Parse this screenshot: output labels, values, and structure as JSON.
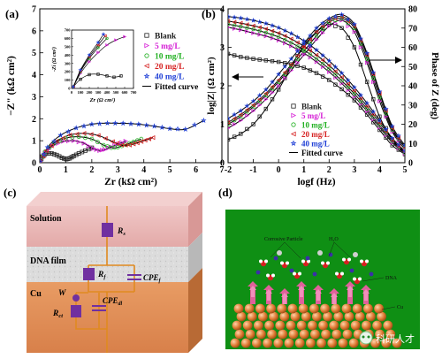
{
  "panel_a": {
    "label": "(a)",
    "ylabel": "−Z\" (kΩ cm²)",
    "xlabel": "Zr (kΩ cm²)",
    "inset_ylabel": "-Zi (Ω cm²)",
    "inset_xlabel": "Zr (Ω cm²)"
  },
  "panel_b": {
    "label": "(b)",
    "ylabel_left": "log|Z| (Ω cm²)",
    "ylabel_right": "Phase of Z (deg)",
    "xlabel": "logf (Hz)"
  },
  "panel_c": {
    "label": "(c)",
    "layers": [
      "Solution",
      "DNA film",
      "Cu"
    ],
    "components": [
      "Rs",
      "Rf",
      "CPEf",
      "W",
      "CPEdl",
      "Rct"
    ]
  },
  "panel_d": {
    "label": "(d)",
    "annotations": [
      "Corrosive Particle",
      "H₂O",
      "DNA",
      "Cu"
    ]
  },
  "watermark": "科研人才",
  "legend": [
    "Blank",
    "5 mg/L",
    "10 mg/L",
    "20 mg/L",
    "40 mg/L",
    "Fitted curve"
  ],
  "colors": {
    "Blank": "#222222",
    "5 mg/L": "#d61fd6",
    "10 mg/L": "#22b022",
    "20 mg/L": "#d62222",
    "40 mg/L": "#1f3fd6",
    "fit": "#000000",
    "solution": "#e8b4b4",
    "dna": "#d8d8d8",
    "cu": "#e49158",
    "circuit": "#e08a20",
    "component": "#7030a0",
    "d_bg": "#0f8f14",
    "d_cu": "#d8762f",
    "d_arrow": "#e0609a"
  },
  "chart_data": [
    {
      "panel": "a",
      "type": "scatter",
      "xlabel": "Zr (kΩ cm²)",
      "ylabel": "−Z\" (kΩ cm²)",
      "xlim": [
        0,
        7
      ],
      "ylim": [
        0,
        7
      ],
      "xticks": [
        0,
        1,
        2,
        3,
        4,
        5,
        6,
        7
      ],
      "yticks": [
        0,
        1,
        2,
        3,
        4,
        5,
        6,
        7
      ],
      "series": [
        {
          "name": "Blank",
          "marker": "square",
          "x": [
            0.02,
            0.1,
            0.25,
            0.45,
            0.65,
            0.85,
            1.02,
            1.15,
            1.3,
            1.5,
            1.75,
            2.0
          ],
          "y": [
            0.05,
            0.28,
            0.42,
            0.43,
            0.35,
            0.22,
            0.16,
            0.2,
            0.3,
            0.42,
            0.55,
            0.68
          ]
        },
        {
          "name": "5 mg/L",
          "marker": "triangle-right",
          "x": [
            0.02,
            0.2,
            0.5,
            0.9,
            1.3,
            1.7,
            2.05,
            2.3,
            2.5,
            2.75,
            3.0,
            3.3
          ],
          "y": [
            0.05,
            0.45,
            0.78,
            0.97,
            1.0,
            0.88,
            0.64,
            0.55,
            0.6,
            0.72,
            0.85,
            0.98
          ]
        },
        {
          "name": "10 mg/L",
          "marker": "circle",
          "x": [
            0.02,
            0.2,
            0.55,
            1.0,
            1.5,
            2.0,
            2.45,
            2.75,
            3.0,
            3.3,
            3.6,
            3.9
          ],
          "y": [
            0.05,
            0.5,
            0.88,
            1.12,
            1.18,
            1.08,
            0.8,
            0.68,
            0.7,
            0.82,
            0.95,
            1.08
          ]
        },
        {
          "name": "20 mg/L",
          "marker": "triangle-left",
          "x": [
            0.02,
            0.25,
            0.65,
            1.15,
            1.7,
            2.25,
            2.8,
            3.15,
            3.45,
            3.75,
            4.05,
            4.35
          ],
          "y": [
            0.05,
            0.55,
            0.98,
            1.26,
            1.34,
            1.24,
            0.96,
            0.8,
            0.8,
            0.9,
            1.02,
            1.14
          ]
        },
        {
          "name": "40 mg/L",
          "marker": "star",
          "x": [
            0.02,
            0.3,
            0.8,
            1.4,
            2.0,
            2.6,
            3.2,
            3.8,
            4.4,
            5.0,
            5.6,
            6.3
          ],
          "y": [
            0.05,
            0.7,
            1.25,
            1.58,
            1.75,
            1.8,
            1.79,
            1.75,
            1.66,
            1.55,
            1.52,
            1.92
          ]
        }
      ],
      "inset": {
        "xlim": [
          0,
          700
        ],
        "ylim": [
          0,
          700
        ],
        "xticks": [
          0,
          100,
          200,
          300,
          400,
          500,
          600,
          700
        ],
        "yticks": [
          0,
          100,
          200,
          300,
          400,
          500,
          600,
          700
        ],
        "series": [
          {
            "name": "Blank",
            "x": [
              20,
              100,
              200,
              300,
              400,
              480,
              560
            ],
            "y": [
              20,
              110,
              165,
              170,
              150,
              135,
              150
            ]
          },
          {
            "name": "5 mg/L",
            "x": [
              20,
              100,
              200,
              300,
              400,
              500,
              600
            ],
            "y": [
              20,
              180,
              320,
              430,
              520,
              580,
              620
            ]
          },
          {
            "name": "10 mg/L",
            "x": [
              20,
              100,
              200,
              300,
              400
            ],
            "y": [
              20,
              200,
              360,
              490,
              600
            ]
          },
          {
            "name": "20 mg/L",
            "x": [
              20,
              100,
              200,
              300,
              380
            ],
            "y": [
              20,
              210,
              380,
              520,
              630
            ]
          },
          {
            "name": "40 mg/L",
            "x": [
              20,
              100,
              200,
              300,
              360
            ],
            "y": [
              20,
              220,
              400,
              550,
              650
            ]
          }
        ]
      }
    },
    {
      "panel": "b",
      "type": "line",
      "xlabel": "logf (Hz)",
      "ylabel": "log|Z| (Ω cm²)",
      "ylabel_right": "Phase of Z (deg)",
      "xlim": [
        -2,
        5
      ],
      "ylim": [
        0,
        4
      ],
      "ylim_right": [
        0,
        80
      ],
      "xticks": [
        -2,
        -1,
        0,
        1,
        2,
        3,
        4,
        5
      ],
      "yticks": [
        0,
        1,
        2,
        3,
        4
      ],
      "yticks_right": [
        0,
        10,
        20,
        30,
        40,
        50,
        60,
        70,
        80
      ],
      "x": [
        -2,
        -1.5,
        -1,
        -0.5,
        0,
        0.5,
        1,
        1.5,
        2,
        2.5,
        3,
        3.5,
        4,
        4.5,
        5
      ],
      "series": [
        {
          "name": "Blank",
          "logZ": [
            2.83,
            2.75,
            2.7,
            2.66,
            2.62,
            2.56,
            2.47,
            2.33,
            2.15,
            1.91,
            1.62,
            1.25,
            0.85,
            0.45,
            0.22
          ],
          "phase": [
            12,
            15,
            20,
            28,
            38,
            50,
            61,
            68,
            72,
            70,
            60,
            42,
            24,
            12,
            5
          ]
        },
        {
          "name": "5 mg/L",
          "logZ": [
            3.52,
            3.45,
            3.37,
            3.29,
            3.18,
            3.03,
            2.85,
            2.62,
            2.36,
            2.06,
            1.72,
            1.34,
            0.92,
            0.52,
            0.24
          ],
          "phase": [
            18,
            22,
            27,
            33,
            40,
            48,
            56,
            64,
            71,
            74,
            68,
            52,
            32,
            16,
            7
          ]
        },
        {
          "name": "10 mg/L",
          "logZ": [
            3.6,
            3.54,
            3.47,
            3.38,
            3.27,
            3.12,
            2.93,
            2.7,
            2.44,
            2.13,
            1.79,
            1.4,
            0.97,
            0.56,
            0.26
          ],
          "phase": [
            20,
            24,
            29,
            35,
            42,
            50,
            58,
            66,
            73,
            75,
            70,
            54,
            34,
            17,
            8
          ]
        },
        {
          "name": "20 mg/L",
          "logZ": [
            3.68,
            3.63,
            3.56,
            3.48,
            3.37,
            3.22,
            3.03,
            2.8,
            2.53,
            2.22,
            1.87,
            1.47,
            1.04,
            0.6,
            0.28
          ],
          "phase": [
            21,
            25,
            30,
            36,
            43,
            51,
            60,
            68,
            74,
            76,
            71,
            56,
            36,
            18,
            8
          ]
        },
        {
          "name": "40 mg/L",
          "logZ": [
            3.8,
            3.76,
            3.7,
            3.62,
            3.51,
            3.36,
            3.17,
            2.93,
            2.65,
            2.33,
            1.96,
            1.55,
            1.1,
            0.64,
            0.3
          ],
          "phase": [
            23,
            27,
            32,
            38,
            46,
            54,
            62,
            70,
            75,
            77,
            72,
            57,
            37,
            19,
            9
          ]
        }
      ]
    }
  ]
}
